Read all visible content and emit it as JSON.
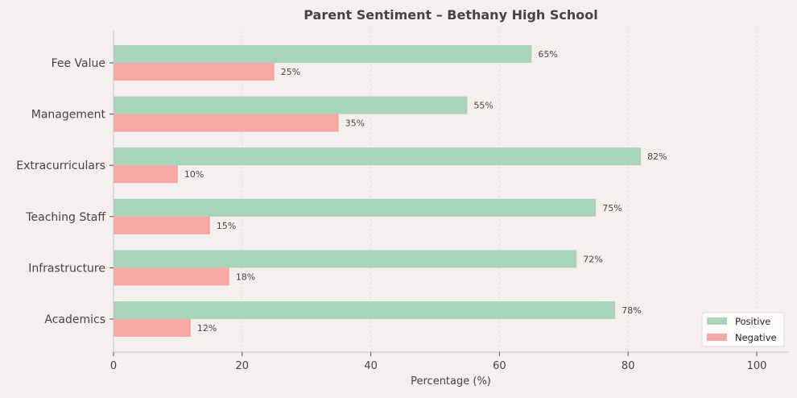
{
  "chart_data": {
    "type": "bar",
    "orientation": "horizontal",
    "title": "Parent Sentiment – Bethany High School",
    "xlabel": "Percentage (%)",
    "ylabel": "",
    "xlim": [
      0,
      105
    ],
    "xticks": [
      0,
      20,
      40,
      60,
      80,
      100
    ],
    "grid": "x, dashed",
    "legend_placement": "bottom-right",
    "categories": [
      "Fee Value",
      "Management",
      "Extracurriculars",
      "Teaching Staff",
      "Infrastructure",
      "Academics"
    ],
    "series": [
      {
        "name": "Positive",
        "color": "#a8d5ba",
        "values": [
          65,
          55,
          82,
          75,
          72,
          78
        ]
      },
      {
        "name": "Negative",
        "color": "#f7a8a4",
        "values": [
          25,
          35,
          10,
          15,
          18,
          12
        ]
      }
    ],
    "value_label_suffix": "%"
  }
}
